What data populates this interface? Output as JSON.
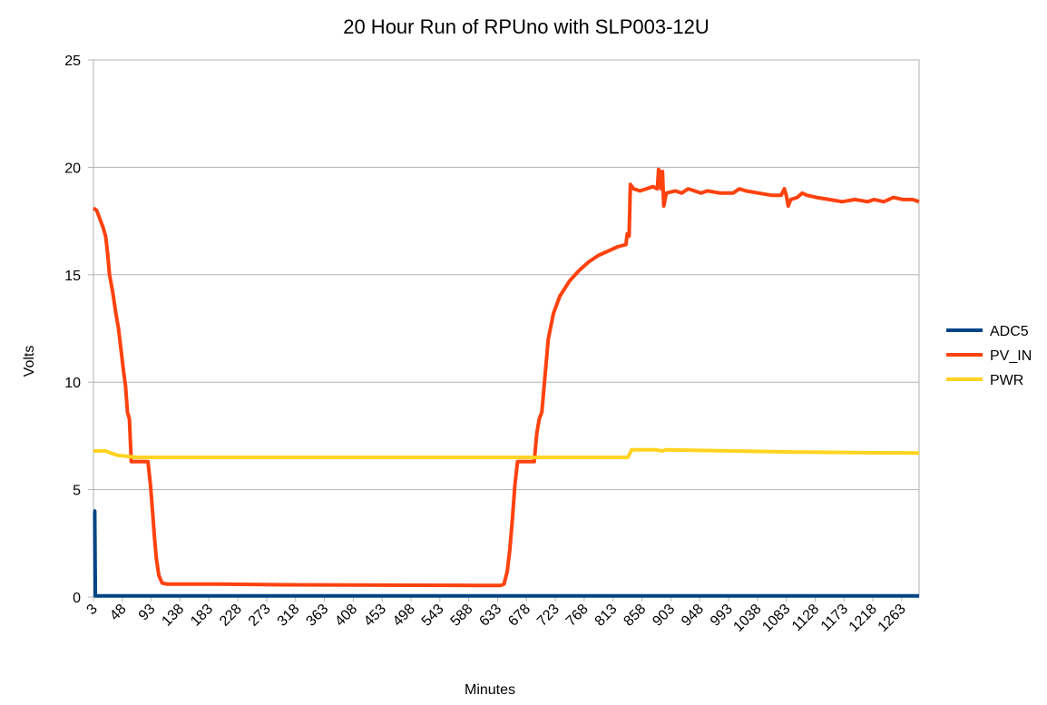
{
  "chart_data": {
    "type": "line",
    "title": "20 Hour Run of RPUno with SLP003-12U",
    "xlabel": "Minutes",
    "ylabel": "Volts",
    "xlim": [
      3,
      1290
    ],
    "ylim": [
      0,
      25
    ],
    "yticks": [
      "0",
      "5",
      "10",
      "15",
      "20",
      "25"
    ],
    "xticks": [
      "3",
      "48",
      "93",
      "138",
      "183",
      "228",
      "273",
      "318",
      "363",
      "408",
      "453",
      "498",
      "543",
      "588",
      "633",
      "678",
      "723",
      "768",
      "813",
      "858",
      "903",
      "948",
      "993",
      "1038",
      "1083",
      "1128",
      "1173",
      "1218",
      "1263"
    ],
    "grid": true,
    "legend_position": "right",
    "series": [
      {
        "name": "ADC5",
        "color": "#004586",
        "points": [
          [
            3,
            4.0
          ],
          [
            5,
            4.0
          ],
          [
            6,
            0.05
          ],
          [
            1290,
            0.05
          ]
        ]
      },
      {
        "name": "PV_IN",
        "color": "#ff420e",
        "points": [
          [
            3,
            18.1
          ],
          [
            8,
            18.0
          ],
          [
            13,
            17.6
          ],
          [
            18,
            17.2
          ],
          [
            22,
            16.8
          ],
          [
            25,
            16.0
          ],
          [
            28,
            15.0
          ],
          [
            33,
            14.2
          ],
          [
            38,
            13.2
          ],
          [
            42,
            12.5
          ],
          [
            46,
            11.5
          ],
          [
            50,
            10.5
          ],
          [
            53,
            9.8
          ],
          [
            56,
            8.6
          ],
          [
            59,
            8.3
          ],
          [
            62,
            6.3
          ],
          [
            68,
            6.3
          ],
          [
            78,
            6.3
          ],
          [
            88,
            6.3
          ],
          [
            92,
            5.2
          ],
          [
            95,
            4.0
          ],
          [
            98,
            2.8
          ],
          [
            101,
            1.8
          ],
          [
            105,
            1.0
          ],
          [
            110,
            0.65
          ],
          [
            118,
            0.6
          ],
          [
            200,
            0.6
          ],
          [
            300,
            0.57
          ],
          [
            400,
            0.56
          ],
          [
            500,
            0.55
          ],
          [
            600,
            0.54
          ],
          [
            638,
            0.54
          ],
          [
            643,
            0.6
          ],
          [
            648,
            1.2
          ],
          [
            652,
            2.2
          ],
          [
            656,
            3.6
          ],
          [
            660,
            5.2
          ],
          [
            664,
            6.3
          ],
          [
            690,
            6.3
          ],
          [
            694,
            7.6
          ],
          [
            698,
            8.3
          ],
          [
            702,
            8.6
          ],
          [
            706,
            10.0
          ],
          [
            712,
            12.0
          ],
          [
            720,
            13.2
          ],
          [
            730,
            14.0
          ],
          [
            745,
            14.7
          ],
          [
            760,
            15.2
          ],
          [
            775,
            15.6
          ],
          [
            790,
            15.9
          ],
          [
            805,
            16.1
          ],
          [
            820,
            16.3
          ],
          [
            833,
            16.4
          ],
          [
            835,
            16.9
          ],
          [
            838,
            16.8
          ],
          [
            840,
            19.2
          ],
          [
            845,
            19.0
          ],
          [
            855,
            18.9
          ],
          [
            865,
            19.0
          ],
          [
            875,
            19.1
          ],
          [
            882,
            19.0
          ],
          [
            884,
            19.9
          ],
          [
            886,
            19.8
          ],
          [
            888,
            19.0
          ],
          [
            890,
            19.8
          ],
          [
            892,
            18.2
          ],
          [
            896,
            18.8
          ],
          [
            910,
            18.9
          ],
          [
            920,
            18.8
          ],
          [
            930,
            19.0
          ],
          [
            940,
            18.9
          ],
          [
            950,
            18.8
          ],
          [
            960,
            18.9
          ],
          [
            980,
            18.8
          ],
          [
            1000,
            18.8
          ],
          [
            1010,
            19.0
          ],
          [
            1020,
            18.9
          ],
          [
            1040,
            18.8
          ],
          [
            1060,
            18.7
          ],
          [
            1075,
            18.7
          ],
          [
            1080,
            19.0
          ],
          [
            1083,
            18.7
          ],
          [
            1086,
            18.2
          ],
          [
            1090,
            18.5
          ],
          [
            1100,
            18.6
          ],
          [
            1108,
            18.8
          ],
          [
            1115,
            18.7
          ],
          [
            1130,
            18.6
          ],
          [
            1150,
            18.5
          ],
          [
            1170,
            18.4
          ],
          [
            1190,
            18.5
          ],
          [
            1210,
            18.4
          ],
          [
            1220,
            18.5
          ],
          [
            1235,
            18.4
          ],
          [
            1250,
            18.6
          ],
          [
            1265,
            18.5
          ],
          [
            1280,
            18.5
          ],
          [
            1290,
            18.4
          ]
        ]
      },
      {
        "name": "PWR",
        "color": "#ffd320",
        "points": [
          [
            3,
            6.8
          ],
          [
            22,
            6.8
          ],
          [
            30,
            6.7
          ],
          [
            40,
            6.6
          ],
          [
            55,
            6.55
          ],
          [
            70,
            6.5
          ],
          [
            200,
            6.5
          ],
          [
            400,
            6.5
          ],
          [
            600,
            6.5
          ],
          [
            830,
            6.5
          ],
          [
            836,
            6.5
          ],
          [
            842,
            6.85
          ],
          [
            880,
            6.85
          ],
          [
            890,
            6.8
          ],
          [
            895,
            6.85
          ],
          [
            1000,
            6.8
          ],
          [
            1100,
            6.75
          ],
          [
            1200,
            6.72
          ],
          [
            1290,
            6.7
          ]
        ]
      }
    ]
  }
}
